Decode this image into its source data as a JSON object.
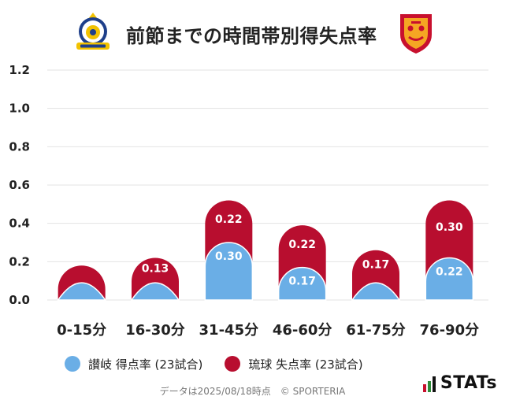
{
  "title": "前節までの時間帯別得失点率",
  "home_logo_icon": "kamatamare-sanuki-crest-icon",
  "away_logo_icon": "fc-ryukyu-crest-icon",
  "colors": {
    "home": "#6aaee6",
    "away": "#b80e2f",
    "grid": "#e3e3e3",
    "axis_text": "#222222"
  },
  "chart_data": {
    "type": "bar",
    "stacked": true,
    "categories": [
      "0-15分",
      "16-30分",
      "31-45分",
      "46-60分",
      "61-75分",
      "76-90分"
    ],
    "series": [
      {
        "name": "讃岐 得点率 (23試合)",
        "values": [
          0.09,
          0.09,
          0.3,
          0.17,
          0.09,
          0.22
        ],
        "labels": [
          "",
          "",
          "0.30",
          "0.17",
          "",
          "0.22"
        ]
      },
      {
        "name": "琉球 失点率 (23試合)",
        "values": [
          0.09,
          0.13,
          0.22,
          0.22,
          0.17,
          0.3
        ],
        "labels": [
          "",
          "0.13",
          "0.22",
          "0.22",
          "0.17",
          "0.30"
        ]
      }
    ],
    "yticks": [
      "0.0",
      "0.2",
      "0.4",
      "0.6",
      "0.8",
      "1.0",
      "1.2"
    ],
    "ylim": [
      0,
      1.2
    ],
    "grid": true,
    "legend": "bottom-left"
  },
  "footer": "データは2025/08/18時点　© SPORTERIA",
  "brand": "STATs",
  "brand_icon": "stats-bars-icon"
}
